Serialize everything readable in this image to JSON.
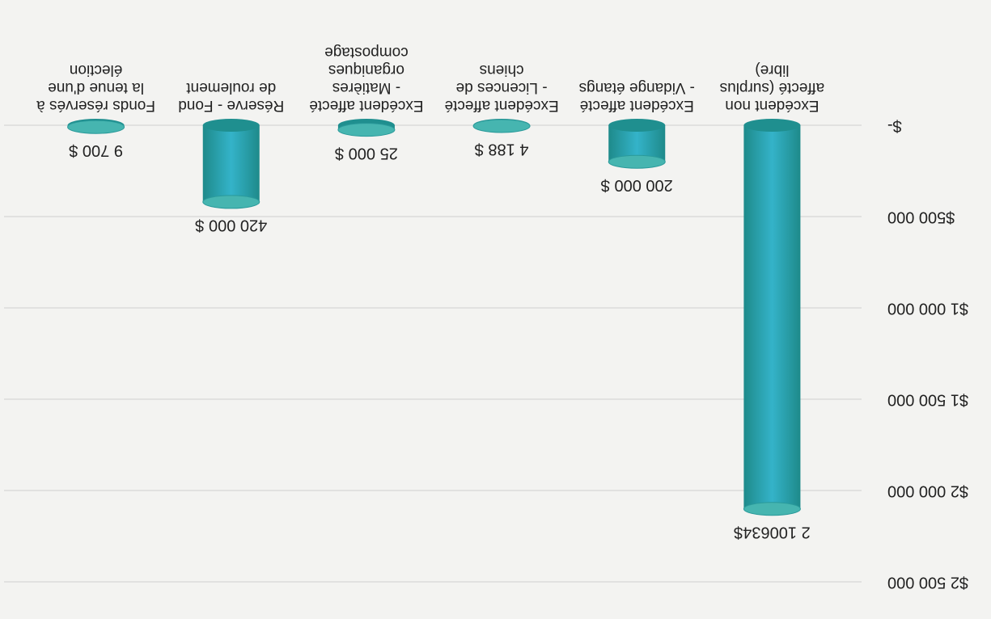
{
  "chart_data": {
    "type": "bar",
    "categories": [
      "Excédent non affecté (surplus libre)",
      "Excédent affecté - Vidange étangs",
      "Excédent affecté - Licences de chiens",
      "Excédent affecté - Matières organiques compostage",
      "Réserve - Fond de roulement",
      "Fonds réservés à la tenue d'une élection"
    ],
    "values": [
      2100634,
      200000,
      4188,
      25000,
      420000,
      9700
    ],
    "value_labels": [
      "2 100634$",
      "200 000 $",
      "4 188 $",
      "25 000 $",
      "420 000 $",
      "9 700 $"
    ],
    "color": "#2a9fae",
    "ylim": [
      0,
      2500000
    ],
    "yticks": [
      {
        "value": 0,
        "label": "$-"
      },
      {
        "value": 500000,
        "label": "$500 000"
      },
      {
        "value": 1000000,
        "label": "$1 000 000"
      },
      {
        "value": 1500000,
        "label": "$1 500 000"
      },
      {
        "value": 2000000,
        "label": "$2 000 000"
      },
      {
        "value": 2500000,
        "label": "$2 500 000"
      }
    ],
    "grid": true
  }
}
